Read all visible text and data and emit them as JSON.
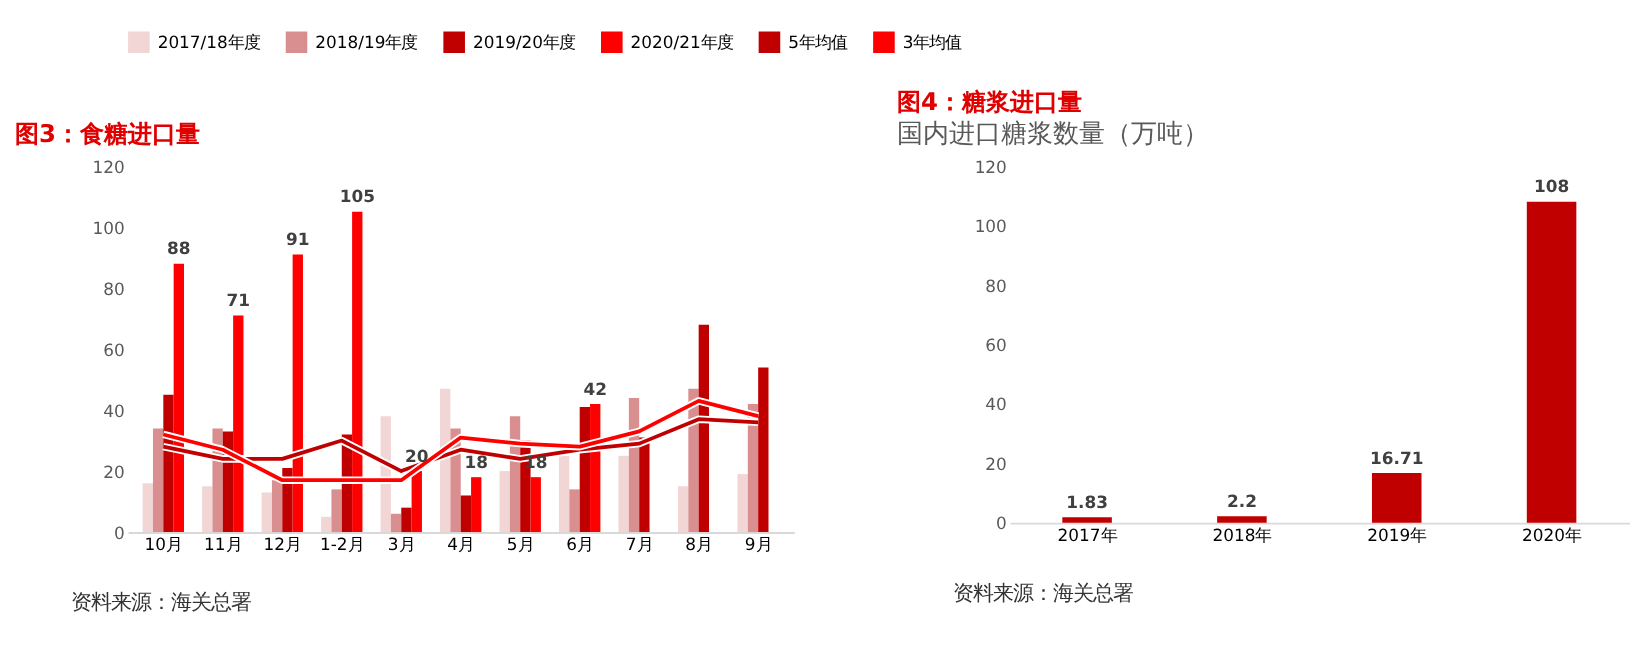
{
  "chart_data": [
    {
      "type": "bar",
      "title": "图3：食糖进口量",
      "categories": [
        "10月",
        "11月",
        "12月",
        "1-2月",
        "3月",
        "4月",
        "5月",
        "6月",
        "7月",
        "8月",
        "9月"
      ],
      "ylim": [
        0,
        120
      ],
      "yticks": [
        0,
        20,
        40,
        60,
        80,
        100,
        120
      ],
      "grid": false,
      "legend": "top",
      "annotations": [
        "资料来源：海关总署"
      ],
      "series": [
        {
          "name": "2017/18年度",
          "color": "#f2d5d5",
          "values": [
            16,
            15,
            13,
            5,
            38,
            47,
            20,
            25,
            25,
            15,
            19
          ]
        },
        {
          "name": "2018/19年度",
          "color": "#d98f8f",
          "values": [
            34,
            34,
            17,
            14,
            6,
            34,
            38,
            14,
            44,
            47,
            42
          ]
        },
        {
          "name": "2019/20年度",
          "color": "#c00000",
          "values": [
            45,
            33,
            21,
            32,
            8,
            12,
            30,
            41,
            31,
            68,
            54
          ]
        },
        {
          "name": "2020/21年度",
          "color": "#ff0000",
          "values": [
            88,
            71,
            91,
            105,
            20,
            18,
            18,
            42,
            null,
            null,
            null
          ],
          "value_labels": [
            "88",
            "71",
            "91",
            "105",
            "20",
            "18",
            "18",
            "42",
            null,
            null,
            null
          ]
        },
        {
          "name": "5年均值",
          "type": "line",
          "color": "#c00000",
          "values": [
            28,
            24,
            24,
            30,
            20,
            27,
            24,
            27,
            29,
            37,
            36
          ]
        },
        {
          "name": "3年均值",
          "type": "line",
          "color": "#ff0000",
          "values": [
            32,
            27,
            17,
            17,
            17,
            31,
            29,
            28,
            33,
            43,
            38
          ]
        }
      ]
    },
    {
      "type": "bar",
      "title": "图4：糖浆进口量",
      "subtitle": "国内进口糖浆数量（万吨）",
      "categories": [
        "2017年",
        "2018年",
        "2019年",
        "2020年"
      ],
      "ylim": [
        0,
        120
      ],
      "yticks": [
        0,
        20,
        40,
        60,
        80,
        100,
        120
      ],
      "grid": false,
      "data_labels": true,
      "annotations": [
        "资料来源：海关总署"
      ],
      "series": [
        {
          "color": "#c00000",
          "values": [
            1.83,
            2.2,
            16.71,
            108
          ]
        }
      ]
    }
  ]
}
